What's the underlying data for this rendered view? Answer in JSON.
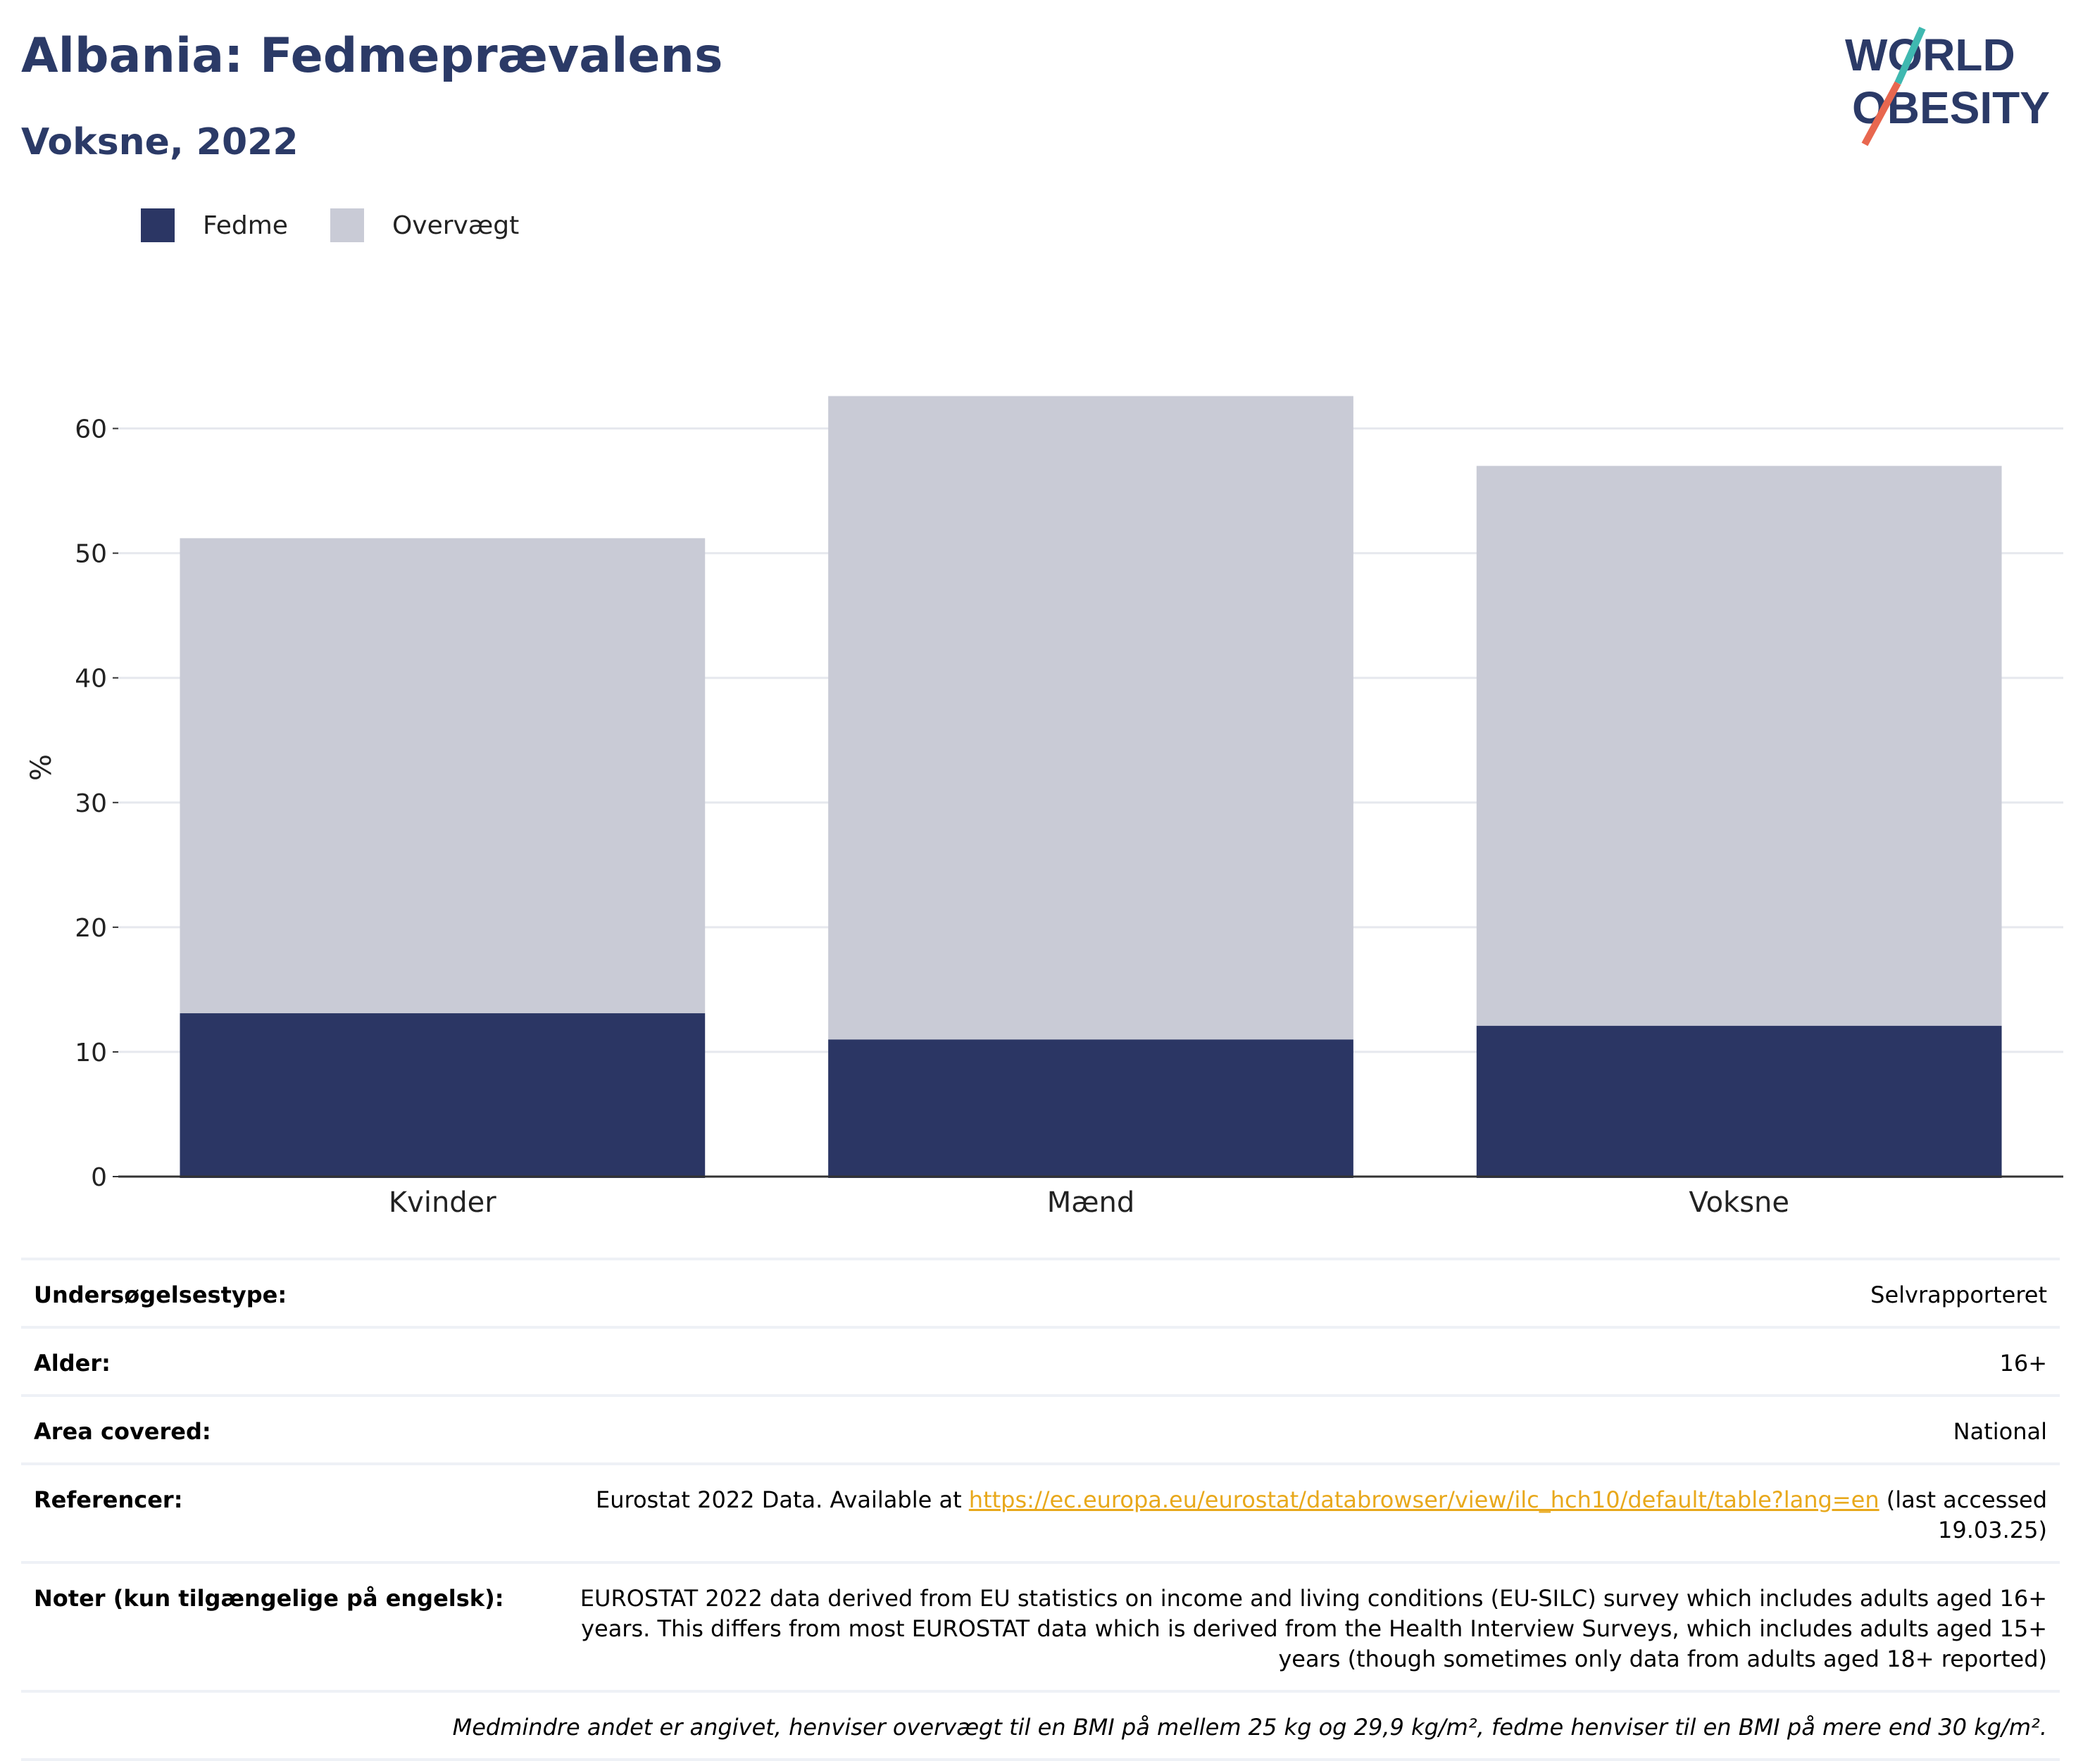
{
  "header": {
    "title": "Albania: Fedmeprævalens",
    "subtitle": "Voksne, 2022",
    "logo_line1": "WORLD",
    "logo_line2": "OBESITY"
  },
  "legend": [
    {
      "label": "Fedme",
      "color": "#2b3664"
    },
    {
      "label": "Overvægt",
      "color": "#c9cbd6"
    }
  ],
  "chart_data": {
    "type": "bar",
    "stacked": true,
    "categories": [
      "Kvinder",
      "Mænd",
      "Voksne"
    ],
    "series": [
      {
        "name": "Fedme",
        "values": [
          13.1,
          11.0,
          12.1
        ],
        "color": "#2b3664"
      },
      {
        "name": "Overvægt",
        "values": [
          38.1,
          51.6,
          44.9
        ],
        "color": "#c9cbd6"
      }
    ],
    "ylabel": "%",
    "ylim": [
      0,
      65
    ],
    "yticks": [
      0,
      10,
      20,
      30,
      40,
      50,
      60
    ],
    "grid": true,
    "legend_position": "top-left"
  },
  "meta": [
    {
      "key": "Undersøgelsestype:",
      "value": "Selvrapporteret"
    },
    {
      "key": "Alder:",
      "value": "16+"
    },
    {
      "key": "Area covered:",
      "value": "National"
    },
    {
      "key": "Referencer:",
      "value_prefix": "Eurostat 2022 Data. Available at",
      "link": "https://ec.europa.eu/eurostat/databrowser/view/ilc_hch10/default/table?lang=en",
      "value_suffix": "(last accessed 19.03.25)"
    },
    {
      "key": "Noter (kun tilgængelige på engelsk):",
      "value": "EUROSTAT 2022 data derived from EU statistics on income and living conditions (EU-SILC) survey which includes adults aged 16+ years. This differs from most EUROSTAT data which is derived from the Health Interview Surveys, which includes adults aged 15+ years (though sometimes only data from adults aged 18+ reported)"
    }
  ],
  "footnote": "Medmindre andet er angivet, henviser overvægt til en BMI på mellem 25 kg og 29,9 kg/m², fedme henviser til en BMI på mere end 30 kg/m²."
}
